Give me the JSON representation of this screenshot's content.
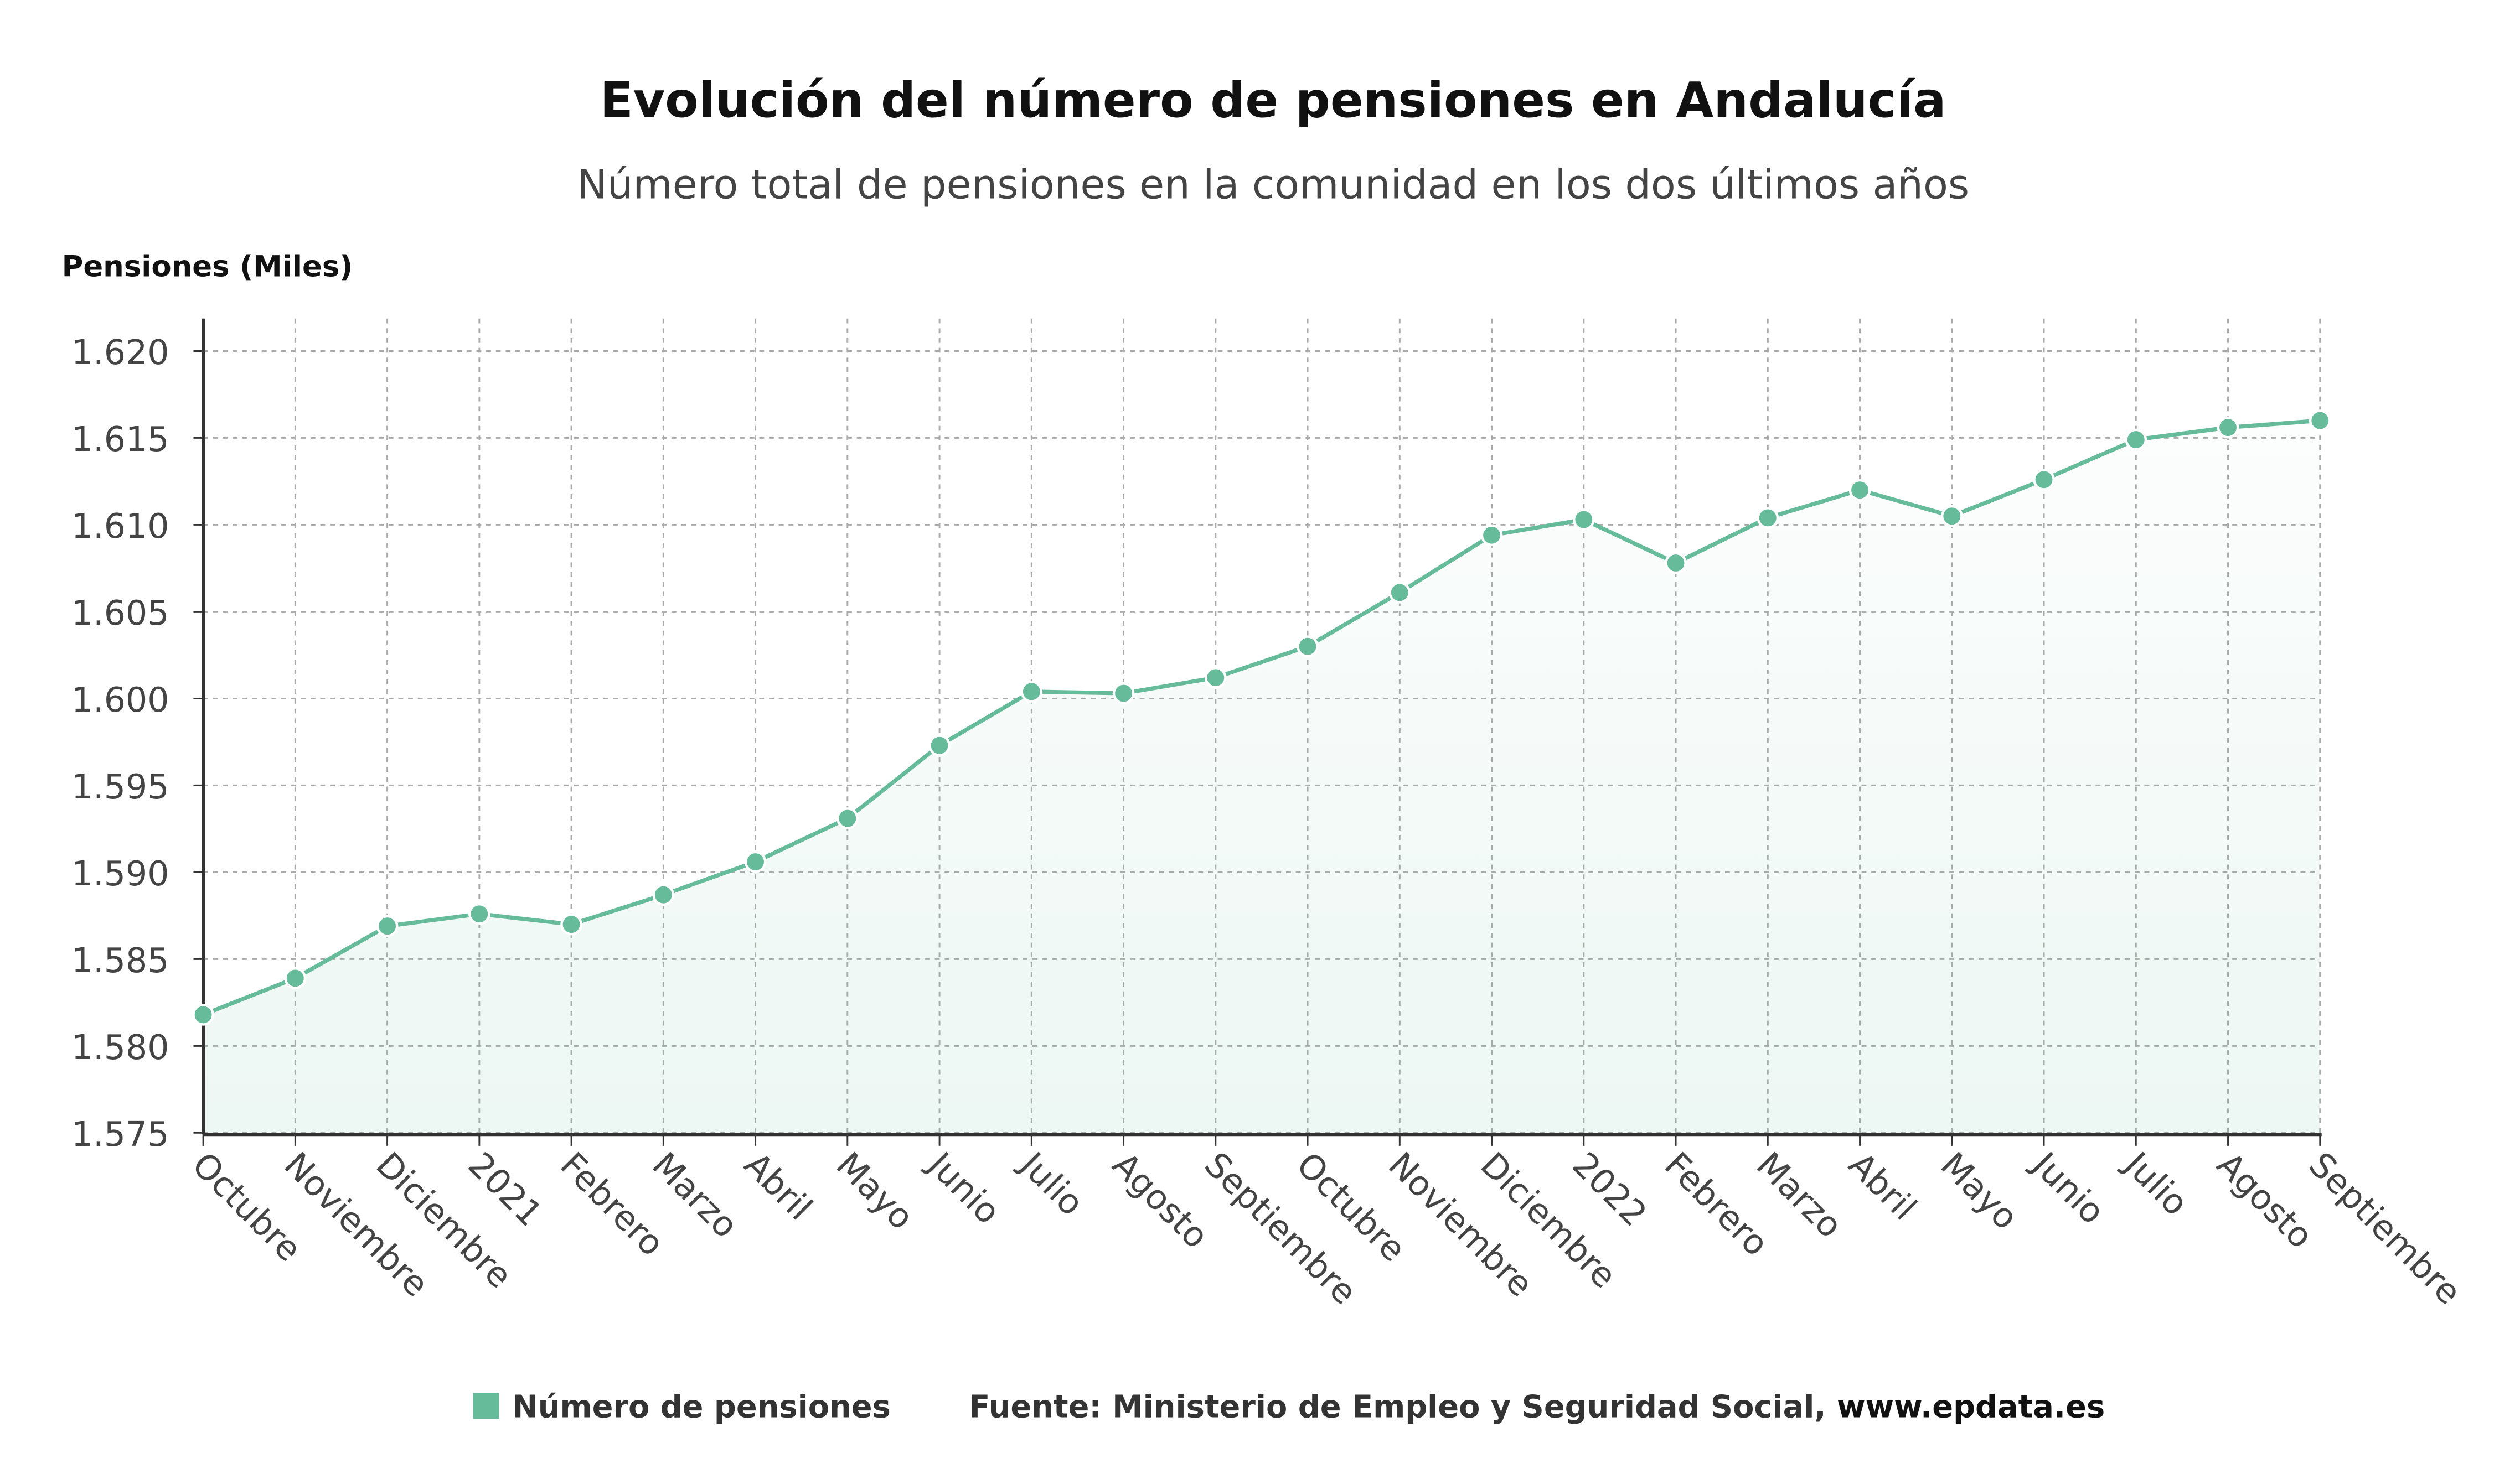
{
  "chart_data": {
    "type": "line",
    "title": "Evolución del número de pensiones en Andalucía",
    "subtitle": "Número total de pensiones en la comunidad en los dos últimos años",
    "ylabel": "Pensiones (Miles)",
    "xlabel": "",
    "ylim": [
      1575,
      1620
    ],
    "yticks": [
      1575,
      1580,
      1585,
      1590,
      1595,
      1600,
      1605,
      1610,
      1615,
      1620
    ],
    "ytick_labels": [
      "1.575",
      "1.580",
      "1.585",
      "1.590",
      "1.595",
      "1.600",
      "1.605",
      "1.610",
      "1.615",
      "1.620"
    ],
    "grid": true,
    "categories": [
      "Octubre",
      "Noviembre",
      "Diciembre",
      "2021",
      "Febrero",
      "Marzo",
      "Abril",
      "Mayo",
      "Junio",
      "Julio",
      "Agosto",
      "Septiembre",
      "Octubre",
      "Noviembre",
      "Diciembre",
      "2022",
      "Febrero",
      "Marzo",
      "Abril",
      "Mayo",
      "Junio",
      "Julio",
      "Agosto",
      "Septiembre"
    ],
    "series": [
      {
        "name": "Número de pensiones",
        "color": "#66bb9a",
        "values": [
          1581.8,
          1583.9,
          1586.9,
          1587.6,
          1587.0,
          1588.7,
          1590.6,
          1593.1,
          1597.3,
          1600.4,
          1600.3,
          1601.2,
          1603.0,
          1606.1,
          1609.4,
          1610.3,
          1607.8,
          1610.4,
          1612.0,
          1610.5,
          1612.6,
          1614.9,
          1615.6,
          1616.0
        ]
      }
    ],
    "legend_placement": "bottom-center",
    "source": "Fuente: Ministerio de Empleo y Seguridad Social, ",
    "source_site": "www.epdata.es"
  }
}
